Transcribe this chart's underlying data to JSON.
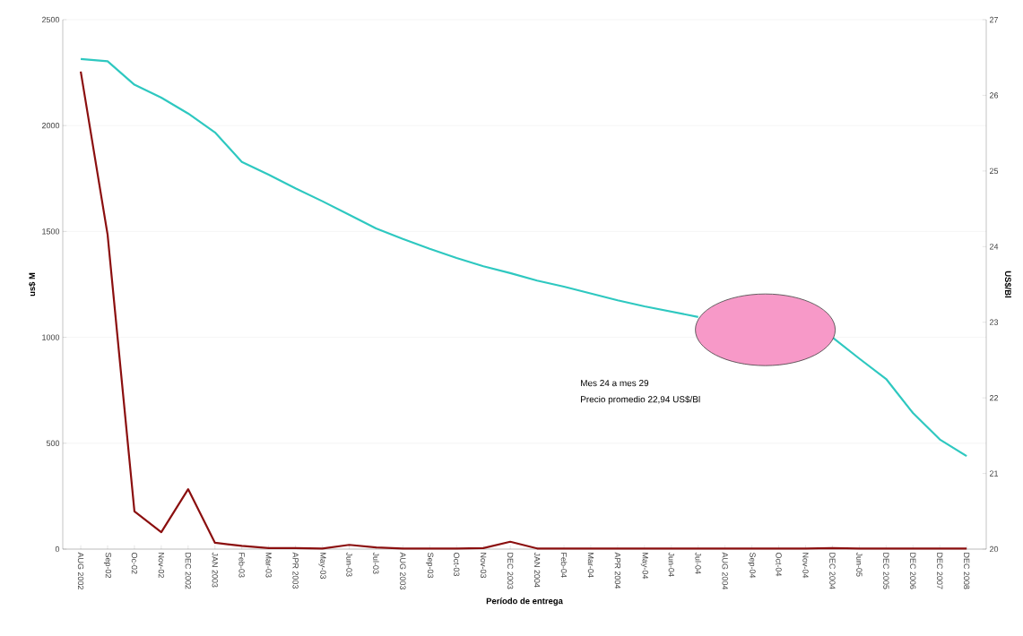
{
  "chart_data": {
    "type": "line",
    "xlabel": "Período de entrega",
    "ylabel": "us$ M",
    "y2label": "US$/Bl",
    "categories": [
      "AUG 2002",
      "Sep-02",
      "Oc-02",
      "Nov-02",
      "DEC 2002",
      "JAN 2003",
      "Feb-03",
      "Mar-03",
      "APR 2003",
      "May-03",
      "Jun-03",
      "Jul-03",
      "AUG 2003",
      "Sep-03",
      "Oct-03",
      "Nov-03",
      "DEC 2003",
      "JAN 2004",
      "Feb-04",
      "Mar-04",
      "APR 2004",
      "May-04",
      "Jun-04",
      "Jul-04",
      "AUG 2004",
      "Sep-04",
      "Oct-04",
      "Nov-04",
      "DEC 2004",
      "Jun-05",
      "DEC 2005",
      "DEC 2006",
      "DEC 2007",
      "DEC 2008"
    ],
    "series": [
      {
        "color": "#8b0f0f",
        "values": [
          2255,
          1485,
          178,
          80,
          283,
          30,
          15,
          5,
          5,
          3,
          20,
          8,
          3,
          3,
          3,
          5,
          35,
          3,
          3,
          3,
          3,
          3,
          3,
          3,
          3,
          3,
          3,
          3,
          5,
          3,
          3,
          3,
          3,
          3
        ]
      },
      {
        "color": "#2ec8c0",
        "axis": "y2",
        "values": [
          26.48,
          26.45,
          26.14,
          25.97,
          25.76,
          25.51,
          25.12,
          24.95,
          24.77,
          24.6,
          24.42,
          24.24,
          24.1,
          23.97,
          23.85,
          23.74,
          23.65,
          23.55,
          23.47,
          23.38,
          23.29,
          23.21,
          23.14,
          23.07,
          null,
          null,
          null,
          null,
          22.8,
          22.52,
          22.25,
          21.8,
          21.45,
          21.23
        ]
      }
    ],
    "ylim": [
      0,
      2500
    ],
    "yticks": [
      0,
      500,
      1000,
      1500,
      2000,
      2500
    ],
    "y2lim": [
      20,
      27
    ],
    "y2ticks": [
      20,
      21,
      22,
      23,
      24,
      25,
      26,
      27
    ],
    "grid": "y",
    "marker": "none",
    "line_style": "solid",
    "annotations": [
      "Mes 24 a mes 29",
      "Precio promedio 22,94 US$/Bl"
    ]
  }
}
